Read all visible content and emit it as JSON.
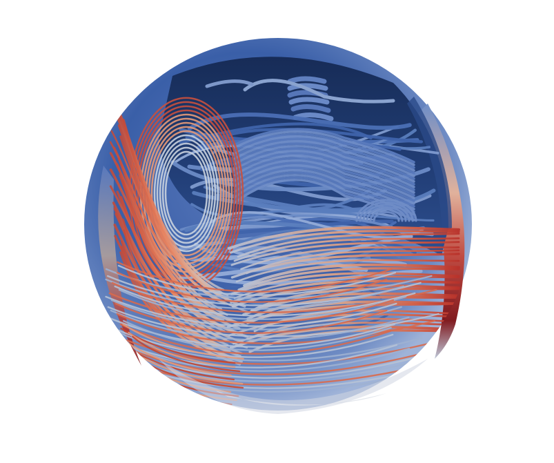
{
  "scene": {
    "subject": "streamline-visualization",
    "colors": {
      "background": "#ffffff",
      "shell_deep": "#1c3566",
      "shell_mid": "#3a5fa8",
      "shell_light": "#8aa3cf",
      "neutral": "#c9ced6",
      "warm": "#e8835f",
      "hot": "#b8322b",
      "deep_red": "#7a0f14"
    }
  }
}
